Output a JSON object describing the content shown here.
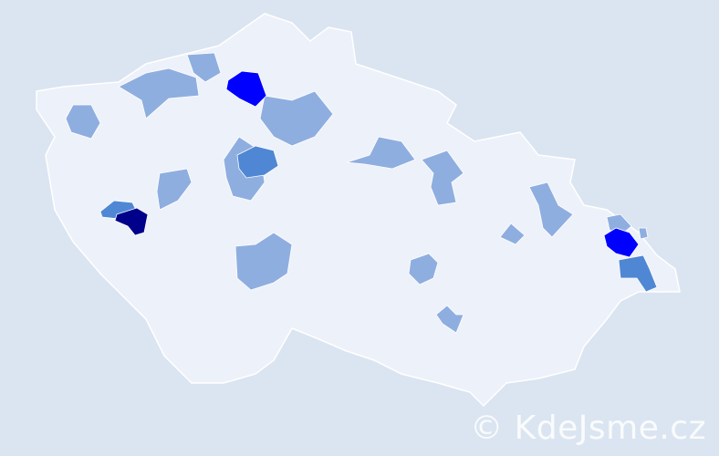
{
  "watermark": "© KdeJsme.cz",
  "colors": {
    "background": "#dbe5f1",
    "land": "#edf1f9",
    "border": "#ffffff",
    "level_1": "#8faee0",
    "level_2": "#4f87d4",
    "level_3": "#0000ff",
    "level_4": "#00008b"
  },
  "regions": [
    {
      "level": 4
    },
    {
      "level": 2
    },
    {
      "level": 3
    },
    {
      "level": 3
    },
    {
      "level": 2
    },
    {
      "level": 2
    },
    {
      "level": 1
    },
    {
      "level": 1
    },
    {
      "level": 1
    },
    {
      "level": 1
    },
    {
      "level": 1
    },
    {
      "level": 1
    },
    {
      "level": 1
    },
    {
      "level": 1
    },
    {
      "level": 1
    },
    {
      "level": 1
    },
    {
      "level": 1
    },
    {
      "level": 1
    },
    {
      "level": 1
    },
    {
      "level": 1
    },
    {
      "level": 1
    }
  ]
}
